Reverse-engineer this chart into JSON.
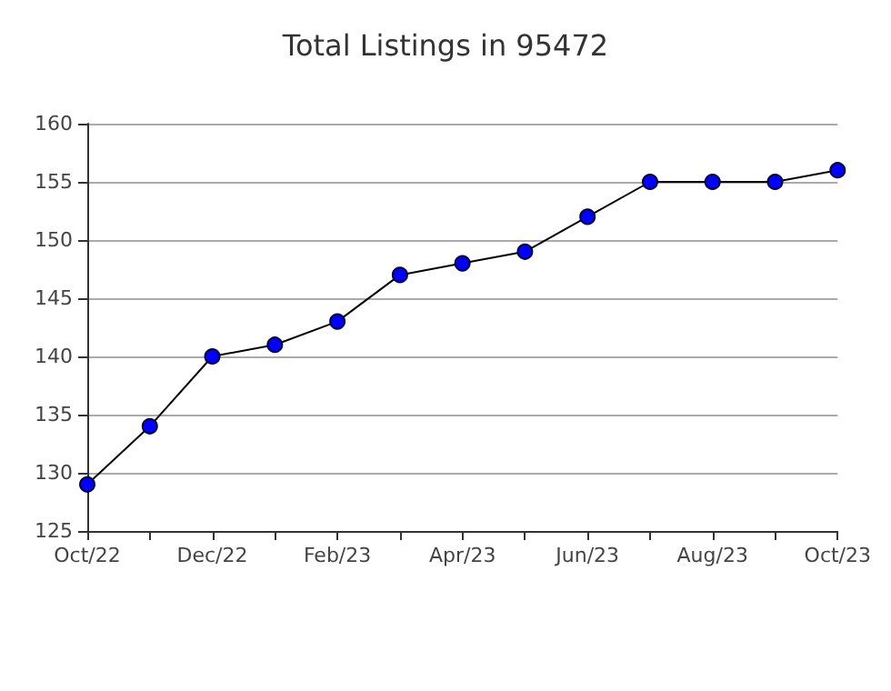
{
  "chart_data": {
    "type": "line",
    "title": "Total Listings in 95472",
    "categories": [
      "Oct/22",
      null,
      "Dec/22",
      null,
      "Feb/23",
      null,
      "Apr/23",
      null,
      "Jun/23",
      null,
      "Aug/23",
      null,
      "Oct/23"
    ],
    "series": [
      {
        "color": "#0000ff",
        "values": [
          129,
          134,
          140,
          141,
          143,
          147,
          148,
          149,
          152,
          155,
          155,
          155,
          156
        ]
      }
    ],
    "ylim": [
      125,
      160
    ],
    "yticks": [
      125,
      130,
      135,
      140,
      145,
      150,
      155,
      160
    ],
    "grid": "y",
    "marker": "circle",
    "line_style": "solid"
  }
}
